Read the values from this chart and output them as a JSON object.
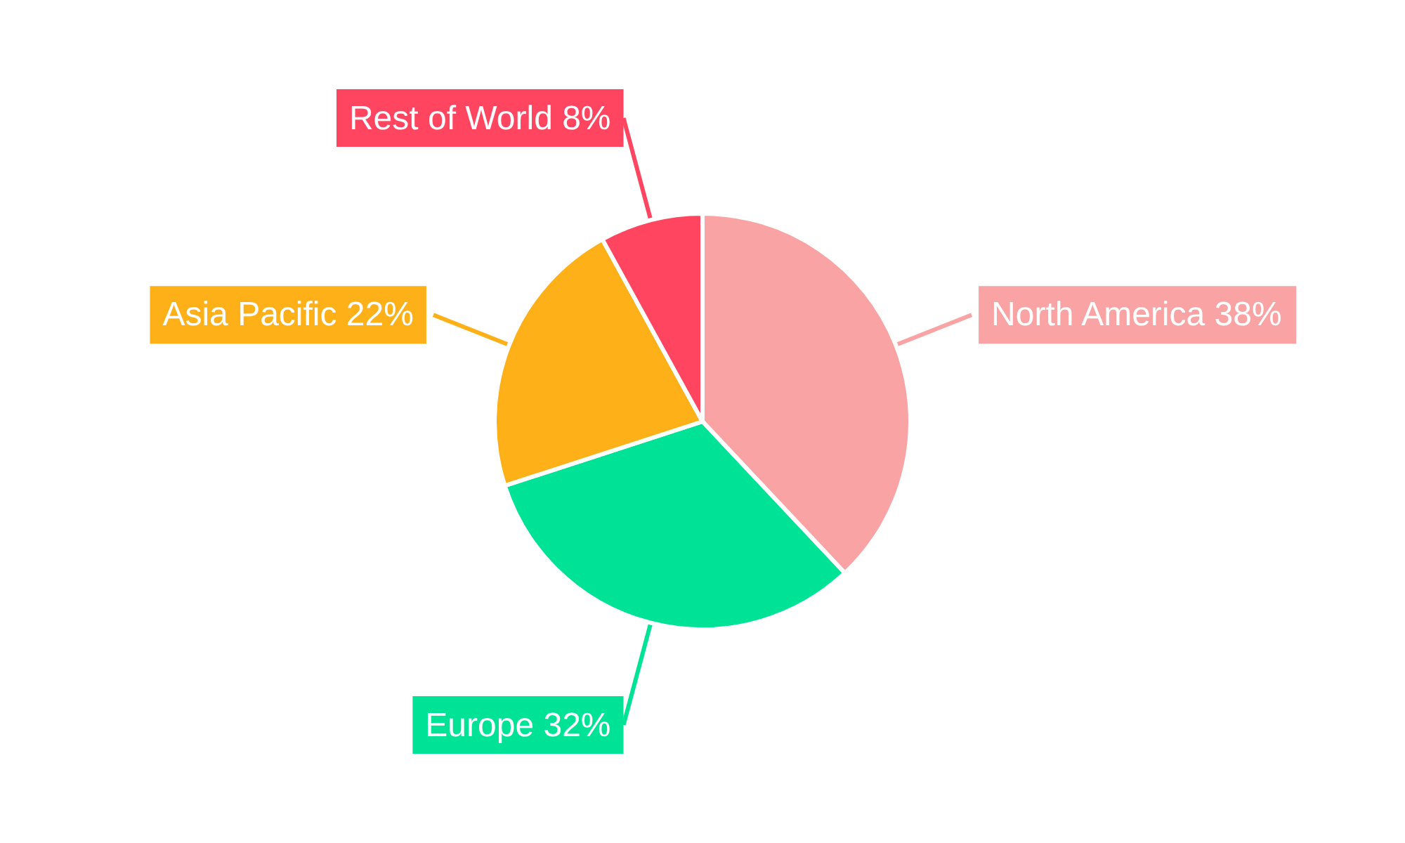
{
  "chart_data": {
    "type": "pie",
    "categories": [
      "North America",
      "Europe",
      "Asia Pacific",
      "Rest of World"
    ],
    "values": [
      38,
      32,
      22,
      8
    ],
    "colors": [
      "#f9a3a4",
      "#00e396",
      "#feb019",
      "#ff4560"
    ],
    "value_labels": [
      "38%",
      "32%",
      "22%",
      "8%"
    ]
  }
}
